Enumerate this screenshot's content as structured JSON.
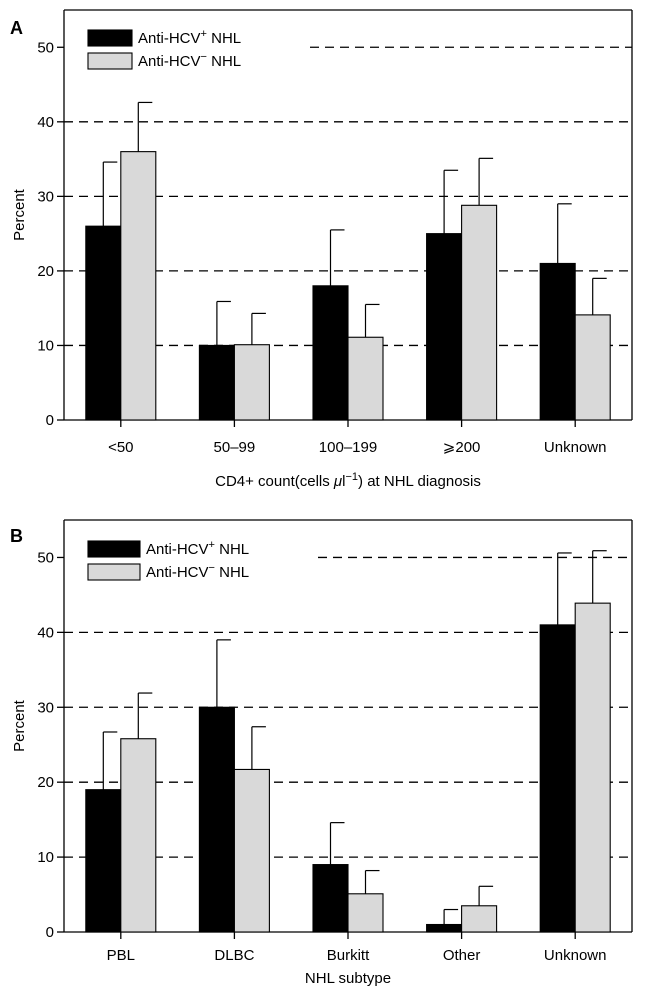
{
  "colors": {
    "series_positive": "#000000",
    "series_negative": "#d9d9d9",
    "axis": "#000000",
    "gridline": "#000000"
  },
  "chart_data": [
    {
      "panel_label": "A",
      "type": "bar",
      "categories": [
        "<50",
        "50–99",
        "100–199",
        "⩾200",
        "Unknown"
      ],
      "series": [
        {
          "name": "Anti-HCV⁺ NHL",
          "name_parts": {
            "base": "Anti-HCV",
            "sup": "+",
            "rest": " NHL"
          },
          "color_key": "series_positive",
          "values": [
            26,
            10,
            18,
            25,
            21
          ],
          "error_upper": [
            34.6,
            15.9,
            25.5,
            33.5,
            29
          ]
        },
        {
          "name": "Anti-HCV⁻ NHL",
          "name_parts": {
            "base": "Anti-HCV",
            "sup": "−",
            "rest": " NHL"
          },
          "color_key": "series_negative",
          "values": [
            36,
            10.1,
            11.1,
            28.8,
            14.1
          ],
          "error_upper": [
            42.6,
            14.3,
            15.5,
            35.1,
            19
          ]
        }
      ],
      "xlabel": "CD4+ count(cells μl⁻¹) at NHL diagnosis",
      "xlabel_parts": {
        "before": "CD4+ count(cells ",
        "mu": "μ",
        "l": "l",
        "sup": "−1",
        "after": ") at NHL diagnosis"
      },
      "ylabel": "Percent",
      "ylim": [
        0,
        55
      ],
      "yticks": [
        0,
        10,
        20,
        30,
        40,
        50
      ],
      "gridlines": [
        10,
        20,
        30,
        40,
        50
      ],
      "grid_style": "dashed",
      "legend_position": "top-left"
    },
    {
      "panel_label": "B",
      "type": "bar",
      "categories": [
        "PBL",
        "DLBC",
        "Burkitt",
        "Other",
        "Unknown"
      ],
      "series": [
        {
          "name": "Anti-HCV⁺ NHL",
          "name_parts": {
            "base": "Anti-HCV",
            "sup": "+",
            "rest": " NHL"
          },
          "color_key": "series_positive",
          "values": [
            19,
            30,
            9,
            1,
            41
          ],
          "error_upper": [
            26.7,
            39,
            14.6,
            3,
            50.6
          ]
        },
        {
          "name": "Anti-HCV⁻ NHL",
          "name_parts": {
            "base": "Anti-HCV",
            "sup": "−",
            "rest": " NHL"
          },
          "color_key": "series_negative",
          "values": [
            25.8,
            21.7,
            5.1,
            3.5,
            43.9
          ],
          "error_upper": [
            31.9,
            27.4,
            8.2,
            6.1,
            50.9
          ]
        }
      ],
      "xlabel": "NHL subtype",
      "ylabel": "Percent",
      "ylim": [
        0,
        55
      ],
      "yticks": [
        0,
        10,
        20,
        30,
        40,
        50
      ],
      "gridlines": [
        10,
        20,
        30,
        40,
        50
      ],
      "grid_style": "dashed",
      "legend_position": "top-left"
    }
  ]
}
